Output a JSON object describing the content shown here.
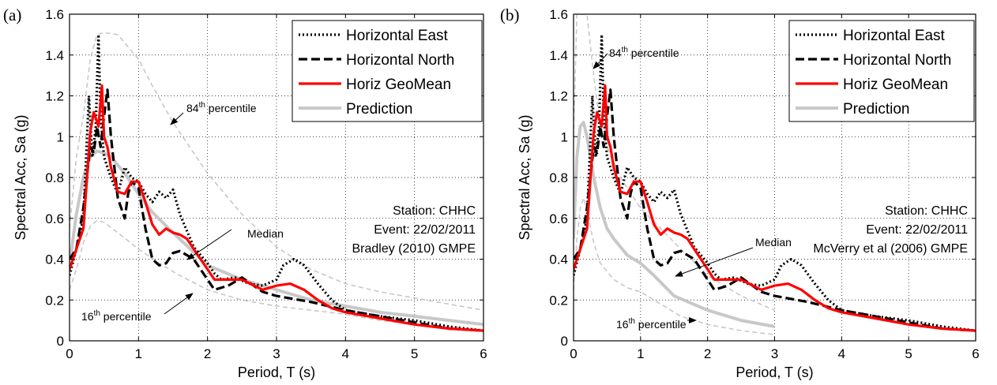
{
  "chart_data": [
    {
      "panel_label": "(a)",
      "type": "line",
      "xlabel": "Period, T (s)",
      "ylabel": "Spectral Acc, Sa (g)",
      "xlim": [
        0,
        6
      ],
      "ylim": [
        0,
        1.6
      ],
      "xticks": [
        "0",
        "1",
        "2",
        "3",
        "4",
        "5",
        "6"
      ],
      "yticks": [
        "0",
        "0.2",
        "0.4",
        "0.6",
        "0.8",
        "1",
        "1.2",
        "1.4",
        "1.6"
      ],
      "grid": true,
      "legend_position": "top-right",
      "annotation": [
        "Station: CHHC",
        "Event: 22/02/2011",
        "Bradley (2010) GMPE"
      ],
      "labels": {
        "p84": {
          "base": "84",
          "sup": "th",
          "rest": " percentile"
        },
        "p16": {
          "base": "16",
          "sup": "th",
          "rest": " percentile"
        },
        "median": "Median"
      },
      "series": [
        {
          "name": "Horizontal East",
          "color": "#000000",
          "style": "dotted",
          "x": [
            0,
            0.1,
            0.2,
            0.28,
            0.33,
            0.38,
            0.42,
            0.45,
            0.5,
            0.55,
            0.6,
            0.7,
            0.8,
            0.9,
            1.0,
            1.1,
            1.2,
            1.3,
            1.4,
            1.5,
            1.6,
            1.8,
            2.0,
            2.1,
            2.2,
            2.4,
            2.6,
            2.8,
            3.0,
            3.1,
            3.25,
            3.4,
            3.6,
            3.8,
            4.0,
            4.5,
            5.0,
            5.5,
            6.0
          ],
          "y": [
            0.32,
            0.45,
            0.6,
            1.2,
            0.9,
            1.05,
            1.5,
            1.1,
            0.9,
            0.85,
            0.8,
            0.72,
            0.85,
            0.8,
            0.78,
            0.72,
            0.68,
            0.73,
            0.7,
            0.74,
            0.62,
            0.46,
            0.38,
            0.33,
            0.3,
            0.31,
            0.28,
            0.27,
            0.3,
            0.37,
            0.4,
            0.37,
            0.28,
            0.2,
            0.15,
            0.12,
            0.1,
            0.07,
            0.05
          ]
        },
        {
          "name": "Horizontal North",
          "color": "#000000",
          "style": "dashed",
          "x": [
            0,
            0.1,
            0.2,
            0.3,
            0.35,
            0.4,
            0.45,
            0.5,
            0.55,
            0.6,
            0.7,
            0.8,
            0.85,
            0.9,
            1.0,
            1.1,
            1.2,
            1.3,
            1.4,
            1.5,
            1.6,
            1.8,
            2.0,
            2.1,
            2.3,
            2.5,
            2.8,
            3.0,
            3.5,
            4.0,
            4.5,
            5.0,
            5.5,
            6.0
          ],
          "y": [
            0.4,
            0.45,
            0.65,
            0.95,
            0.92,
            1.05,
            0.95,
            1.1,
            1.23,
            1.0,
            0.7,
            0.6,
            0.72,
            0.78,
            0.75,
            0.55,
            0.4,
            0.37,
            0.38,
            0.43,
            0.44,
            0.4,
            0.3,
            0.25,
            0.27,
            0.31,
            0.24,
            0.22,
            0.19,
            0.15,
            0.12,
            0.09,
            0.06,
            0.05
          ]
        },
        {
          "name": "Horiz GeoMean",
          "color": "#ff0000",
          "style": "solid",
          "x": [
            0,
            0.1,
            0.2,
            0.3,
            0.35,
            0.42,
            0.47,
            0.5,
            0.55,
            0.6,
            0.7,
            0.8,
            0.9,
            1.0,
            1.1,
            1.2,
            1.3,
            1.4,
            1.5,
            1.6,
            1.7,
            1.8,
            1.9,
            2.0,
            2.1,
            2.3,
            2.5,
            2.8,
            3.0,
            3.2,
            3.4,
            3.6,
            3.8,
            4.0,
            4.5,
            5.0,
            5.5,
            6.0
          ],
          "y": [
            0.35,
            0.45,
            0.55,
            1.02,
            1.12,
            1.05,
            1.25,
            1.0,
            0.95,
            0.85,
            0.73,
            0.72,
            0.78,
            0.78,
            0.68,
            0.57,
            0.52,
            0.55,
            0.53,
            0.52,
            0.5,
            0.45,
            0.4,
            0.35,
            0.3,
            0.3,
            0.3,
            0.25,
            0.27,
            0.28,
            0.25,
            0.2,
            0.16,
            0.14,
            0.11,
            0.08,
            0.06,
            0.05
          ]
        },
        {
          "name": "Prediction",
          "color": "#c8c8c8",
          "style": "solid-thick",
          "x": [
            0,
            0.05,
            0.1,
            0.2,
            0.3,
            0.4,
            0.5,
            0.6,
            0.8,
            1.0,
            1.2,
            1.5,
            2.0,
            2.5,
            3.0,
            3.5,
            4.0,
            4.5,
            5.0,
            5.5,
            6.0
          ],
          "y": [
            0.37,
            0.5,
            0.62,
            0.8,
            0.9,
            0.93,
            0.92,
            0.9,
            0.82,
            0.72,
            0.63,
            0.53,
            0.37,
            0.3,
            0.25,
            0.2,
            0.17,
            0.14,
            0.12,
            0.1,
            0.08
          ]
        },
        {
          "name": "84th percentile",
          "color": "#c8c8c8",
          "style": "dashed-thin",
          "in_legend": false,
          "x": [
            0,
            0.1,
            0.2,
            0.3,
            0.4,
            0.5,
            0.7,
            0.9,
            1.0,
            1.2,
            1.5,
            2.0,
            2.5,
            3.0,
            3.5,
            4.0,
            4.5,
            5.0,
            5.5,
            6.0
          ],
          "y": [
            0.55,
            0.9,
            1.1,
            1.38,
            1.5,
            1.51,
            1.5,
            1.42,
            1.38,
            1.25,
            1.07,
            0.82,
            0.62,
            0.46,
            0.35,
            0.28,
            0.24,
            0.21,
            0.18,
            0.15
          ]
        },
        {
          "name": "16th percentile",
          "color": "#c8c8c8",
          "style": "dashed-thin",
          "in_legend": false,
          "x": [
            0,
            0.1,
            0.2,
            0.3,
            0.4,
            0.5,
            0.7,
            1.0,
            1.3,
            1.6,
            2.0,
            2.5,
            3.0,
            3.5,
            4.0,
            4.5,
            5.0,
            5.5,
            6.0
          ],
          "y": [
            0.25,
            0.35,
            0.48,
            0.56,
            0.59,
            0.58,
            0.53,
            0.45,
            0.38,
            0.32,
            0.25,
            0.2,
            0.17,
            0.15,
            0.13,
            0.1,
            0.08,
            0.07,
            0.05
          ]
        }
      ]
    },
    {
      "panel_label": "(b)",
      "type": "line",
      "xlabel": "Period, T (s)",
      "ylabel": "Spectral Acc, Sa (g)",
      "xlim": [
        0,
        6
      ],
      "ylim": [
        0,
        1.6
      ],
      "xticks": [
        "0",
        "1",
        "2",
        "3",
        "4",
        "5",
        "6"
      ],
      "yticks": [
        "0",
        "0.2",
        "0.4",
        "0.6",
        "0.8",
        "1",
        "1.2",
        "1.4",
        "1.6"
      ],
      "grid": true,
      "legend_position": "top-right",
      "annotation": [
        "Station: CHHC",
        "Event: 22/02/2011",
        "McVerry et al (2006) GMPE"
      ],
      "labels": {
        "p84": {
          "base": "84",
          "sup": "th",
          "rest": " percentile"
        },
        "p16": {
          "base": "16",
          "sup": "th",
          "rest": " percentile"
        },
        "median": "Median"
      },
      "series": [
        {
          "name": "Horizontal East",
          "color": "#000000",
          "style": "dotted",
          "x": [
            0,
            0.1,
            0.2,
            0.28,
            0.33,
            0.38,
            0.42,
            0.45,
            0.5,
            0.55,
            0.6,
            0.7,
            0.8,
            0.9,
            1.0,
            1.1,
            1.2,
            1.3,
            1.4,
            1.5,
            1.6,
            1.8,
            2.0,
            2.1,
            2.2,
            2.4,
            2.6,
            2.8,
            3.0,
            3.1,
            3.25,
            3.4,
            3.6,
            3.8,
            4.0,
            4.5,
            5.0,
            5.5,
            6.0
          ],
          "y": [
            0.32,
            0.45,
            0.6,
            1.2,
            0.9,
            1.05,
            1.5,
            1.1,
            0.9,
            0.85,
            0.8,
            0.72,
            0.85,
            0.8,
            0.78,
            0.72,
            0.68,
            0.73,
            0.7,
            0.74,
            0.62,
            0.46,
            0.38,
            0.33,
            0.3,
            0.31,
            0.28,
            0.27,
            0.3,
            0.37,
            0.4,
            0.37,
            0.28,
            0.2,
            0.15,
            0.12,
            0.1,
            0.07,
            0.05
          ]
        },
        {
          "name": "Horizontal North",
          "color": "#000000",
          "style": "dashed",
          "x": [
            0,
            0.1,
            0.2,
            0.3,
            0.35,
            0.4,
            0.45,
            0.5,
            0.55,
            0.6,
            0.7,
            0.8,
            0.85,
            0.9,
            1.0,
            1.1,
            1.2,
            1.3,
            1.4,
            1.5,
            1.6,
            1.8,
            2.0,
            2.1,
            2.3,
            2.5,
            2.8,
            3.0,
            3.5,
            4.0,
            4.5,
            5.0,
            5.5,
            6.0
          ],
          "y": [
            0.4,
            0.45,
            0.65,
            0.95,
            0.92,
            1.05,
            0.95,
            1.1,
            1.23,
            1.0,
            0.7,
            0.6,
            0.72,
            0.78,
            0.75,
            0.55,
            0.4,
            0.37,
            0.38,
            0.43,
            0.44,
            0.4,
            0.3,
            0.25,
            0.27,
            0.31,
            0.24,
            0.22,
            0.19,
            0.15,
            0.12,
            0.09,
            0.06,
            0.05
          ]
        },
        {
          "name": "Horiz GeoMean",
          "color": "#ff0000",
          "style": "solid",
          "x": [
            0,
            0.1,
            0.2,
            0.3,
            0.35,
            0.42,
            0.47,
            0.5,
            0.55,
            0.6,
            0.7,
            0.8,
            0.9,
            1.0,
            1.1,
            1.2,
            1.3,
            1.4,
            1.5,
            1.6,
            1.7,
            1.8,
            1.9,
            2.0,
            2.1,
            2.3,
            2.5,
            2.8,
            3.0,
            3.2,
            3.4,
            3.6,
            3.8,
            4.0,
            4.5,
            5.0,
            5.5,
            6.0
          ],
          "y": [
            0.35,
            0.45,
            0.55,
            1.02,
            1.12,
            1.05,
            1.25,
            1.0,
            0.95,
            0.85,
            0.73,
            0.72,
            0.78,
            0.78,
            0.68,
            0.57,
            0.52,
            0.55,
            0.53,
            0.52,
            0.5,
            0.45,
            0.4,
            0.35,
            0.3,
            0.3,
            0.3,
            0.25,
            0.27,
            0.28,
            0.25,
            0.2,
            0.16,
            0.14,
            0.11,
            0.08,
            0.06,
            0.05
          ]
        },
        {
          "name": "Prediction",
          "color": "#c8c8c8",
          "style": "solid-thick",
          "x": [
            0,
            0.05,
            0.1,
            0.15,
            0.2,
            0.3,
            0.4,
            0.5,
            0.6,
            0.8,
            1.0,
            1.2,
            1.5,
            2.0,
            2.5,
            3.0
          ],
          "y": [
            0.5,
            0.9,
            1.05,
            1.07,
            1.0,
            0.8,
            0.65,
            0.55,
            0.5,
            0.42,
            0.38,
            0.32,
            0.22,
            0.15,
            0.1,
            0.07
          ]
        },
        {
          "name": "84th percentile",
          "color": "#c8c8c8",
          "style": "dashed-thin",
          "in_legend": false,
          "x": [
            0,
            0.05,
            0.1,
            0.15,
            0.2,
            0.3,
            0.4,
            0.5,
            0.7,
            1.0,
            1.3,
            1.6,
            2.0,
            2.5,
            3.0
          ],
          "y": [
            1.0,
            1.6,
            1.6,
            1.6,
            1.6,
            1.3,
            1.05,
            0.95,
            0.8,
            0.65,
            0.55,
            0.45,
            0.32,
            0.22,
            0.15
          ]
        },
        {
          "name": "16th percentile",
          "color": "#c8c8c8",
          "style": "dashed-thin",
          "in_legend": false,
          "x": [
            0,
            0.05,
            0.1,
            0.15,
            0.2,
            0.3,
            0.4,
            0.6,
            0.8,
            1.0,
            1.3,
            1.6,
            2.0,
            2.5,
            3.0
          ],
          "y": [
            0.25,
            0.5,
            0.65,
            0.7,
            0.64,
            0.48,
            0.38,
            0.3,
            0.26,
            0.24,
            0.18,
            0.12,
            0.08,
            0.05,
            0.03
          ]
        }
      ]
    }
  ]
}
